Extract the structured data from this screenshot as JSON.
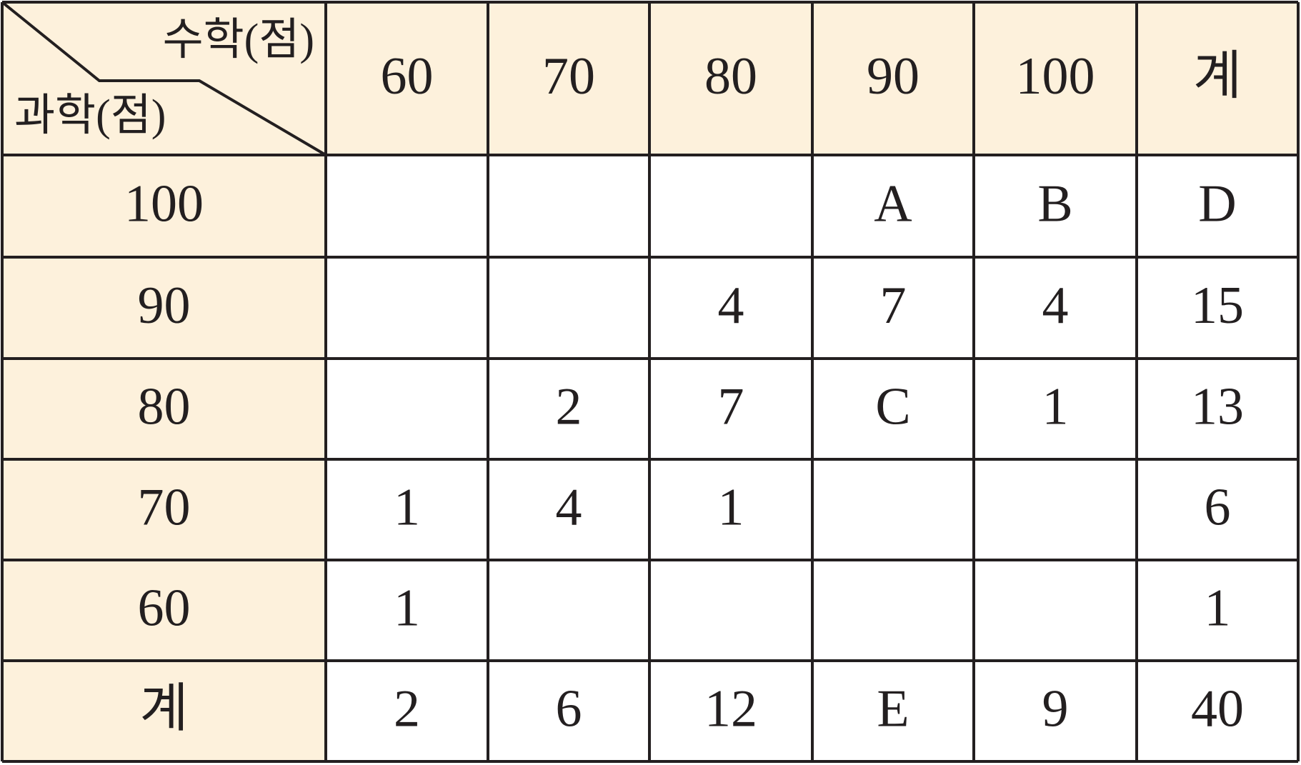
{
  "table": {
    "corner": {
      "column_label": "수학(점)",
      "row_label": "과학(점)"
    },
    "columns": [
      60,
      70,
      80,
      90,
      100,
      "계"
    ],
    "rows": [
      {
        "label": 100,
        "cells": [
          null,
          null,
          null,
          "A",
          "B",
          "D"
        ]
      },
      {
        "label": 90,
        "cells": [
          null,
          null,
          4,
          7,
          4,
          15
        ]
      },
      {
        "label": 80,
        "cells": [
          null,
          2,
          7,
          "C",
          1,
          13
        ]
      },
      {
        "label": 70,
        "cells": [
          1,
          4,
          1,
          null,
          null,
          6
        ]
      },
      {
        "label": 60,
        "cells": [
          1,
          null,
          null,
          null,
          null,
          1
        ]
      },
      {
        "label": "계",
        "cells": [
          2,
          6,
          12,
          "E",
          9,
          40
        ]
      }
    ]
  }
}
